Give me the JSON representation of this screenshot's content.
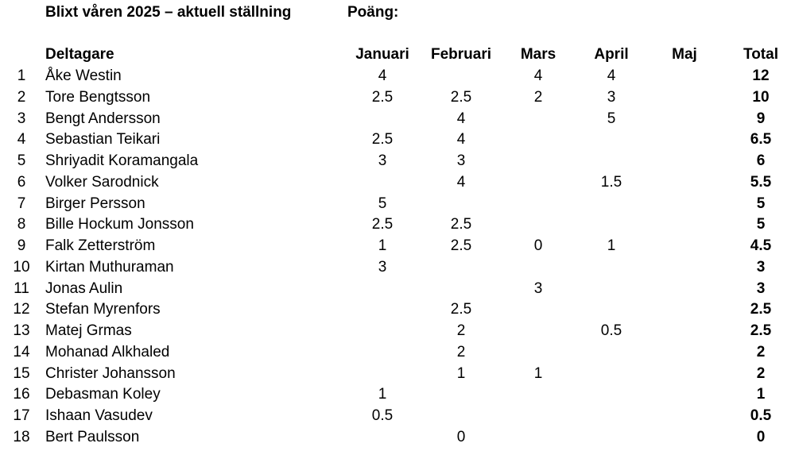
{
  "header": {
    "title": "Blixt våren 2025 – aktuell ställning",
    "points_label": "Poäng:"
  },
  "table": {
    "name_header": "Deltagare",
    "columns": [
      "Januari",
      "Februari",
      "Mars",
      "April",
      "Maj"
    ],
    "total_header": "Total",
    "rows": [
      {
        "rank": 1,
        "name": "Åke Westin",
        "values": [
          4,
          null,
          4,
          4,
          null
        ],
        "total": 12
      },
      {
        "rank": 2,
        "name": "Tore Bengtsson",
        "values": [
          2.5,
          2.5,
          2,
          3,
          null
        ],
        "total": 10
      },
      {
        "rank": 3,
        "name": "Bengt Andersson",
        "values": [
          null,
          4,
          null,
          5,
          null
        ],
        "total": 9
      },
      {
        "rank": 4,
        "name": "Sebastian Teikari",
        "values": [
          2.5,
          4,
          null,
          null,
          null
        ],
        "total": 6.5
      },
      {
        "rank": 5,
        "name": "Shriyadit Koramangala",
        "values": [
          3,
          3,
          null,
          null,
          null
        ],
        "total": 6
      },
      {
        "rank": 6,
        "name": "Volker Sarodnick",
        "values": [
          null,
          4,
          null,
          1.5,
          null
        ],
        "total": 5.5
      },
      {
        "rank": 7,
        "name": "Birger Persson",
        "values": [
          5,
          null,
          null,
          null,
          null
        ],
        "total": 5
      },
      {
        "rank": 8,
        "name": "Bille Hockum Jonsson",
        "values": [
          2.5,
          2.5,
          null,
          null,
          null
        ],
        "total": 5
      },
      {
        "rank": 9,
        "name": "Falk Zetterström",
        "values": [
          1,
          2.5,
          0,
          1,
          null
        ],
        "total": 4.5
      },
      {
        "rank": 10,
        "name": "Kirtan Muthuraman",
        "values": [
          3,
          null,
          null,
          null,
          null
        ],
        "total": 3
      },
      {
        "rank": 11,
        "name": "Jonas Aulin",
        "values": [
          null,
          null,
          3,
          null,
          null
        ],
        "total": 3
      },
      {
        "rank": 12,
        "name": "Stefan Myrenfors",
        "values": [
          null,
          2.5,
          null,
          null,
          null
        ],
        "total": 2.5
      },
      {
        "rank": 13,
        "name": "Matej Grmas",
        "values": [
          null,
          2,
          null,
          0.5,
          null
        ],
        "total": 2.5
      },
      {
        "rank": 14,
        "name": "Mohanad Alkhaled",
        "values": [
          null,
          2,
          null,
          null,
          null
        ],
        "total": 2
      },
      {
        "rank": 15,
        "name": "Christer Johansson",
        "values": [
          null,
          1,
          1,
          null,
          null
        ],
        "total": 2
      },
      {
        "rank": 16,
        "name": "Debasman Koley",
        "values": [
          1,
          null,
          null,
          null,
          null
        ],
        "total": 1
      },
      {
        "rank": 17,
        "name": "Ishaan Vasudev",
        "values": [
          0.5,
          null,
          null,
          null,
          null
        ],
        "total": 0.5
      },
      {
        "rank": 18,
        "name": "Bert Paulsson",
        "values": [
          null,
          0,
          null,
          null,
          null
        ],
        "total": 0
      }
    ]
  }
}
